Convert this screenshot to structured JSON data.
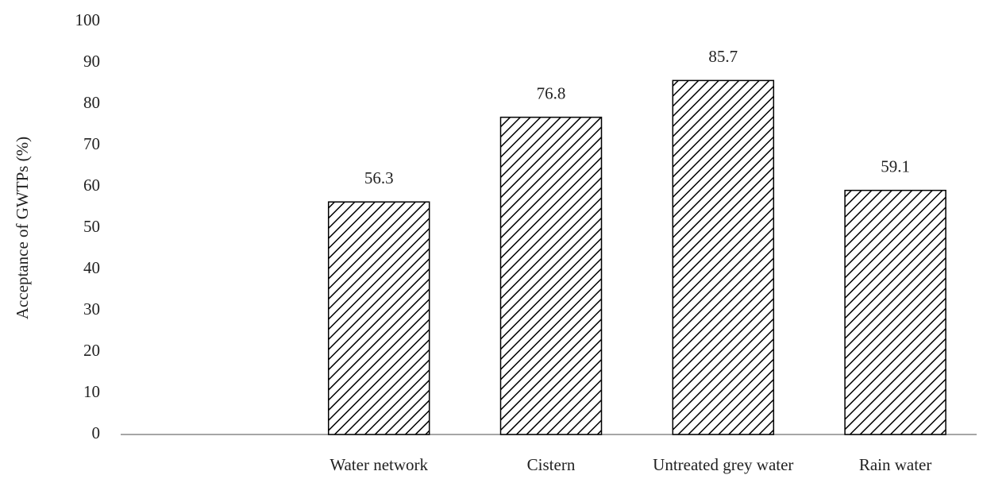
{
  "chart_data": {
    "type": "bar",
    "y_label": "Acceptance of GWTPs (%)",
    "categories": [
      null,
      "Water network",
      "Cistern",
      "Untreated grey water",
      "Rain water"
    ],
    "values": [
      null,
      56.3,
      76.8,
      85.7,
      59.1
    ],
    "color": "#000000",
    "ylim": [
      0,
      100
    ],
    "yticks": [
      0,
      10,
      20,
      30,
      40,
      50,
      60,
      70,
      80,
      90,
      100
    ],
    "grid": false
  }
}
